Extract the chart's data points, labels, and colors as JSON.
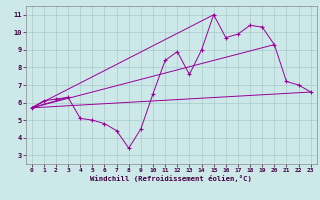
{
  "xlabel": "Windchill (Refroidissement éolien,°C)",
  "background_color": "#cce8e8",
  "line_color": "#990099",
  "grid_color": "#aacccc",
  "xlim": [
    -0.5,
    23.5
  ],
  "ylim": [
    2.5,
    11.5
  ],
  "xticks": [
    0,
    1,
    2,
    3,
    4,
    5,
    6,
    7,
    8,
    9,
    10,
    11,
    12,
    13,
    14,
    15,
    16,
    17,
    18,
    19,
    20,
    21,
    22,
    23
  ],
  "yticks": [
    3,
    4,
    5,
    6,
    7,
    8,
    9,
    10,
    11
  ],
  "main_series_x": [
    0,
    1,
    2,
    3,
    4,
    5,
    6,
    7,
    8,
    9,
    10,
    11,
    12,
    13,
    14,
    15,
    16,
    17,
    18,
    19,
    20,
    21,
    22,
    23
  ],
  "main_series_y": [
    5.7,
    6.1,
    6.2,
    6.3,
    5.1,
    5.0,
    4.8,
    4.4,
    3.4,
    4.5,
    6.5,
    8.4,
    8.9,
    7.6,
    9.0,
    11.0,
    9.7,
    9.9,
    10.4,
    10.3,
    9.3,
    7.2,
    7.0,
    6.6
  ],
  "straight_lines": [
    [
      [
        0,
        23
      ],
      [
        5.7,
        6.6
      ]
    ],
    [
      [
        0,
        15
      ],
      [
        5.7,
        11.0
      ]
    ],
    [
      [
        0,
        20
      ],
      [
        5.7,
        9.3
      ]
    ],
    [
      [
        0,
        3
      ],
      [
        5.7,
        6.3
      ]
    ]
  ]
}
